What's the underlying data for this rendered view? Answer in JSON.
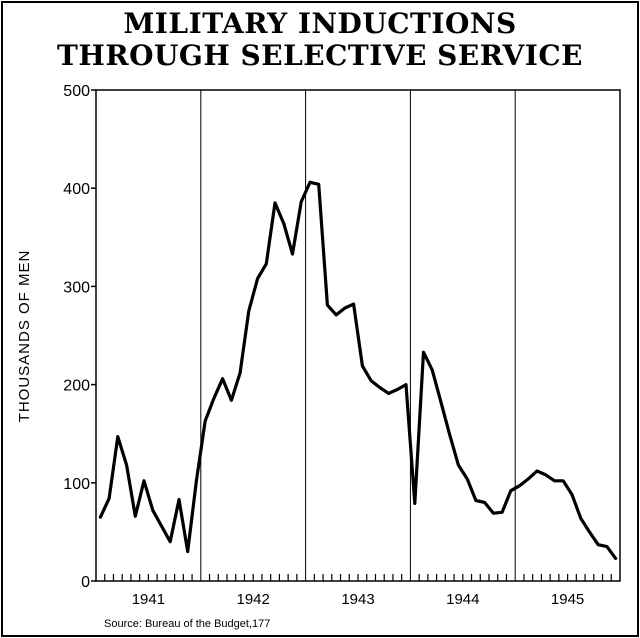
{
  "chart_data": {
    "type": "line",
    "title": [
      "MILITARY INDUCTIONS",
      "THROUGH SELECTIVE SERVICE"
    ],
    "ylabel": "THOUSANDS OF MEN",
    "xlabel": "",
    "ylim": [
      0,
      500
    ],
    "yticks": [
      0,
      100,
      200,
      300,
      400,
      500
    ],
    "ytick_labels": [
      "0",
      "100",
      "200",
      "300",
      "400",
      "500"
    ],
    "year_labels": [
      "1941",
      "1942",
      "1943",
      "1944",
      "1945"
    ],
    "year_dividers": true,
    "grid": false,
    "legend": "none",
    "source": "Source: Bureau of the Budget,177",
    "series": [
      {
        "x": [
          "1941-01",
          "1941-02",
          "1941-03",
          "1941-04",
          "1941-05",
          "1941-06",
          "1941-07",
          "1941-08",
          "1941-09",
          "1941-10",
          "1941-11",
          "1941-12",
          "1942-01",
          "1942-02",
          "1942-03",
          "1942-04",
          "1942-05",
          "1942-06",
          "1942-07",
          "1942-08",
          "1942-09",
          "1942-10",
          "1942-11",
          "1942-12",
          "1943-01",
          "1943-02",
          "1943-03",
          "1943-04",
          "1943-05",
          "1943-06",
          "1943-07",
          "1943-08",
          "1943-09",
          "1943-10",
          "1943-11",
          "1943-12",
          "1944-01",
          "1944-02",
          "1944-03",
          "1944-04",
          "1944-05",
          "1944-06",
          "1944-07",
          "1944-08",
          "1944-09",
          "1944-10",
          "1944-11",
          "1944-12",
          "1945-01",
          "1945-02",
          "1945-03",
          "1945-04",
          "1945-05",
          "1945-06",
          "1945-07",
          "1945-08",
          "1945-09",
          "1945-10",
          "1945-11",
          "1945-12"
        ],
        "values": [
          65,
          84,
          147,
          118,
          66,
          102,
          72,
          56,
          40,
          83,
          30,
          102,
          163,
          186,
          206,
          184,
          212,
          275,
          308,
          323,
          385,
          364,
          333,
          386,
          406,
          404,
          281,
          271,
          278,
          282,
          219,
          204,
          197,
          191,
          195,
          200,
          79,
          233,
          215,
          182,
          149,
          118,
          104,
          82,
          80,
          69,
          70,
          92,
          97,
          104,
          112,
          108,
          102,
          102,
          88,
          64,
          50,
          37,
          35,
          23
        ]
      }
    ]
  }
}
